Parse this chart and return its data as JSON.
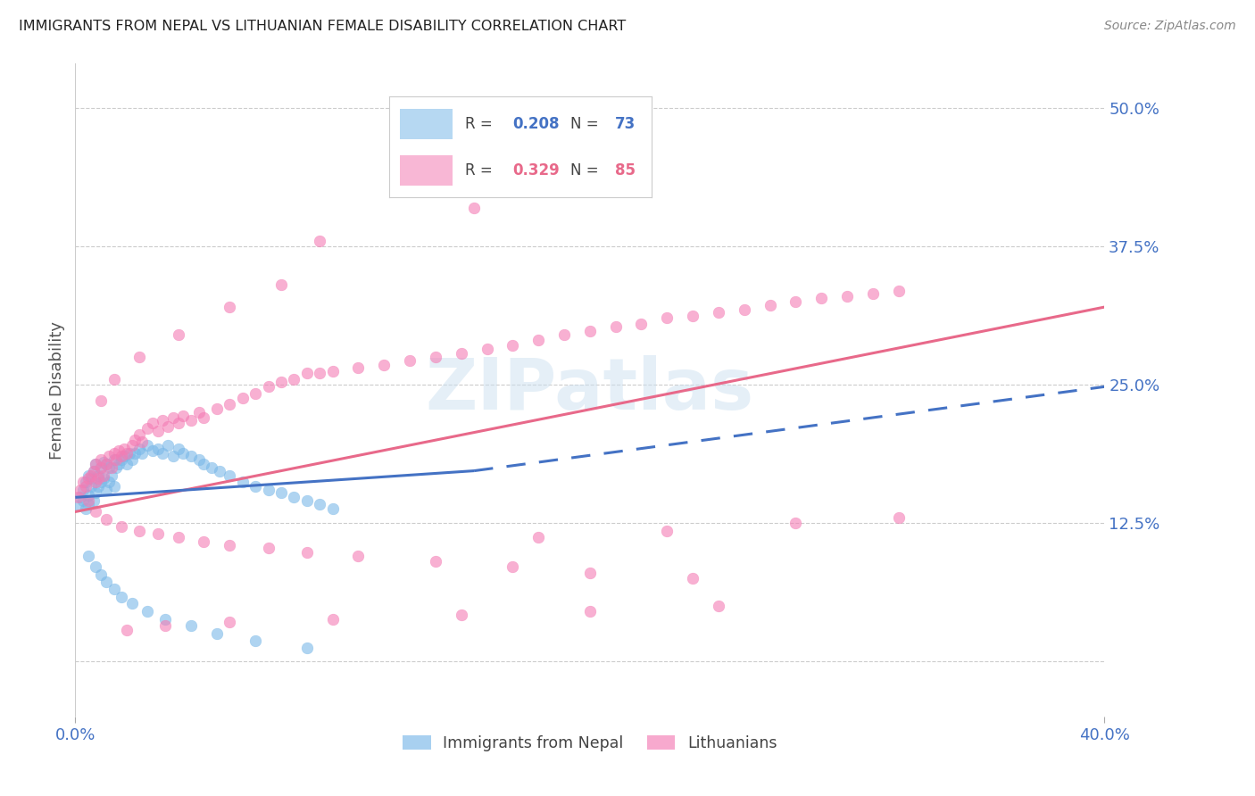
{
  "title": "IMMIGRANTS FROM NEPAL VS LITHUANIAN FEMALE DISABILITY CORRELATION CHART",
  "source": "Source: ZipAtlas.com",
  "ylabel": "Female Disability",
  "xlim": [
    0.0,
    0.4
  ],
  "ylim": [
    -0.05,
    0.54
  ],
  "color1": "#7ab8e8",
  "color2": "#f47cb4",
  "line1_color": "#4472c4",
  "line2_color": "#e8698a",
  "watermark": "ZIPatlas",
  "series1_label": "Immigrants from Nepal",
  "series2_label": "Lithuanians",
  "yticks": [
    0.0,
    0.125,
    0.25,
    0.375,
    0.5
  ],
  "ytick_labels": [
    "",
    "12.5%",
    "25.0%",
    "37.5%",
    "50.0%"
  ],
  "line1_x0": 0.0,
  "line1_x1": 0.155,
  "line1_y0": 0.148,
  "line1_y1": 0.172,
  "line1_dash_x0": 0.155,
  "line1_dash_x1": 0.4,
  "line1_dash_y0": 0.172,
  "line1_dash_y1": 0.248,
  "line2_x0": 0.0,
  "line2_x1": 0.4,
  "line2_y0": 0.135,
  "line2_y1": 0.32,
  "nepal_x": [
    0.001,
    0.002,
    0.003,
    0.003,
    0.004,
    0.004,
    0.005,
    0.005,
    0.005,
    0.006,
    0.006,
    0.007,
    0.007,
    0.008,
    0.008,
    0.009,
    0.009,
    0.01,
    0.01,
    0.011,
    0.011,
    0.012,
    0.012,
    0.013,
    0.013,
    0.014,
    0.015,
    0.015,
    0.016,
    0.017,
    0.018,
    0.019,
    0.02,
    0.021,
    0.022,
    0.023,
    0.025,
    0.026,
    0.028,
    0.03,
    0.032,
    0.034,
    0.036,
    0.038,
    0.04,
    0.042,
    0.045,
    0.048,
    0.05,
    0.053,
    0.056,
    0.06,
    0.065,
    0.07,
    0.075,
    0.08,
    0.085,
    0.09,
    0.095,
    0.1,
    0.005,
    0.008,
    0.01,
    0.012,
    0.015,
    0.018,
    0.022,
    0.028,
    0.035,
    0.045,
    0.055,
    0.07,
    0.09
  ],
  "nepal_y": [
    0.14,
    0.148,
    0.155,
    0.145,
    0.162,
    0.138,
    0.168,
    0.15,
    0.142,
    0.165,
    0.158,
    0.172,
    0.145,
    0.178,
    0.152,
    0.168,
    0.158,
    0.175,
    0.162,
    0.18,
    0.165,
    0.178,
    0.155,
    0.175,
    0.162,
    0.168,
    0.182,
    0.158,
    0.175,
    0.178,
    0.182,
    0.185,
    0.178,
    0.188,
    0.182,
    0.188,
    0.192,
    0.188,
    0.195,
    0.19,
    0.192,
    0.188,
    0.195,
    0.185,
    0.192,
    0.188,
    0.185,
    0.182,
    0.178,
    0.175,
    0.172,
    0.168,
    0.162,
    0.158,
    0.155,
    0.152,
    0.148,
    0.145,
    0.142,
    0.138,
    0.095,
    0.085,
    0.078,
    0.072,
    0.065,
    0.058,
    0.052,
    0.045,
    0.038,
    0.032,
    0.025,
    0.018,
    0.012
  ],
  "lith_x": [
    0.001,
    0.002,
    0.003,
    0.004,
    0.005,
    0.005,
    0.006,
    0.007,
    0.008,
    0.008,
    0.009,
    0.01,
    0.01,
    0.011,
    0.012,
    0.013,
    0.014,
    0.015,
    0.016,
    0.017,
    0.018,
    0.019,
    0.02,
    0.022,
    0.023,
    0.025,
    0.026,
    0.028,
    0.03,
    0.032,
    0.034,
    0.036,
    0.038,
    0.04,
    0.042,
    0.045,
    0.048,
    0.05,
    0.055,
    0.06,
    0.065,
    0.07,
    0.075,
    0.08,
    0.085,
    0.09,
    0.095,
    0.1,
    0.11,
    0.12,
    0.13,
    0.14,
    0.15,
    0.16,
    0.17,
    0.18,
    0.19,
    0.2,
    0.21,
    0.22,
    0.23,
    0.24,
    0.25,
    0.26,
    0.27,
    0.28,
    0.29,
    0.3,
    0.31,
    0.32,
    0.008,
    0.012,
    0.018,
    0.025,
    0.032,
    0.04,
    0.05,
    0.06,
    0.075,
    0.09,
    0.11,
    0.14,
    0.17,
    0.2,
    0.24
  ],
  "lith_y": [
    0.148,
    0.155,
    0.162,
    0.158,
    0.165,
    0.145,
    0.168,
    0.172,
    0.162,
    0.178,
    0.165,
    0.175,
    0.182,
    0.168,
    0.178,
    0.185,
    0.175,
    0.188,
    0.182,
    0.19,
    0.185,
    0.192,
    0.188,
    0.195,
    0.2,
    0.205,
    0.198,
    0.21,
    0.215,
    0.208,
    0.218,
    0.212,
    0.22,
    0.215,
    0.222,
    0.218,
    0.225,
    0.22,
    0.228,
    0.232,
    0.238,
    0.242,
    0.248,
    0.252,
    0.255,
    0.26,
    0.26,
    0.262,
    0.265,
    0.268,
    0.272,
    0.275,
    0.278,
    0.282,
    0.285,
    0.29,
    0.295,
    0.298,
    0.302,
    0.305,
    0.31,
    0.312,
    0.315,
    0.318,
    0.322,
    0.325,
    0.328,
    0.33,
    0.332,
    0.335,
    0.135,
    0.128,
    0.122,
    0.118,
    0.115,
    0.112,
    0.108,
    0.105,
    0.102,
    0.098,
    0.095,
    0.09,
    0.085,
    0.08,
    0.075
  ],
  "lith_outliers_x": [
    0.13,
    0.155,
    0.095,
    0.08,
    0.06,
    0.04,
    0.025,
    0.015,
    0.01,
    0.25,
    0.2,
    0.15,
    0.1,
    0.06,
    0.035,
    0.02,
    0.32,
    0.28,
    0.23,
    0.18
  ],
  "lith_outliers_y": [
    0.45,
    0.41,
    0.38,
    0.34,
    0.32,
    0.295,
    0.275,
    0.255,
    0.235,
    0.05,
    0.045,
    0.042,
    0.038,
    0.035,
    0.032,
    0.028,
    0.13,
    0.125,
    0.118,
    0.112
  ]
}
